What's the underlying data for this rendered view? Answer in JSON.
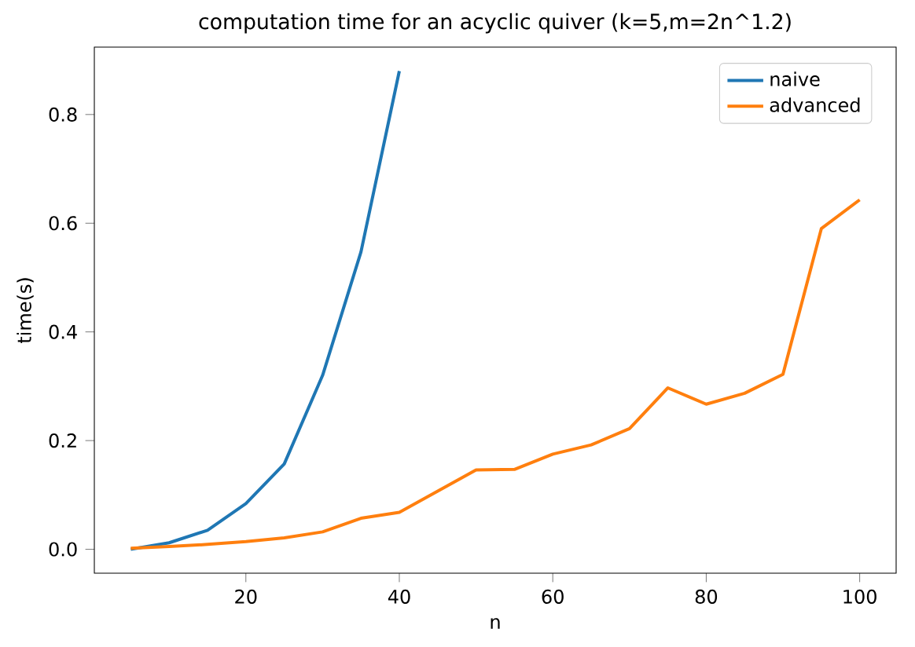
{
  "chart_data": {
    "type": "line",
    "title": "computation time for an acyclic quiver (k=5,m=2n^1.2)",
    "xlabel": "n",
    "ylabel": "time(s)",
    "series": [
      {
        "name": "naive",
        "color": "#1f77b4",
        "x": [
          5,
          10,
          15,
          20,
          25,
          30,
          35,
          40
        ],
        "values": [
          0.0,
          0.012,
          0.035,
          0.084,
          0.157,
          0.32,
          0.547,
          0.88
        ]
      },
      {
        "name": "advanced",
        "color": "#ff7f0e",
        "x": [
          5,
          10,
          15,
          20,
          25,
          30,
          35,
          40,
          45,
          50,
          55,
          60,
          65,
          70,
          75,
          80,
          85,
          90,
          95,
          100
        ],
        "values": [
          0.002,
          0.005,
          0.009,
          0.014,
          0.021,
          0.032,
          0.057,
          0.068,
          0.107,
          0.146,
          0.147,
          0.175,
          0.192,
          0.222,
          0.297,
          0.267,
          0.287,
          0.322,
          0.59,
          0.643
        ]
      }
    ],
    "xlim": [
      0.25,
      104.75
    ],
    "ylim": [
      -0.044,
      0.924
    ],
    "xticks": [
      20,
      40,
      60,
      80,
      100
    ],
    "yticks": [
      {
        "value": 0,
        "label": "0.0"
      },
      {
        "value": 0.2,
        "label": "0.2"
      },
      {
        "value": 0.4,
        "label": "0.4"
      },
      {
        "value": 0.6,
        "label": "0.6"
      },
      {
        "value": 0.8,
        "label": "0.8"
      }
    ],
    "legend": "top right",
    "grid": false
  }
}
